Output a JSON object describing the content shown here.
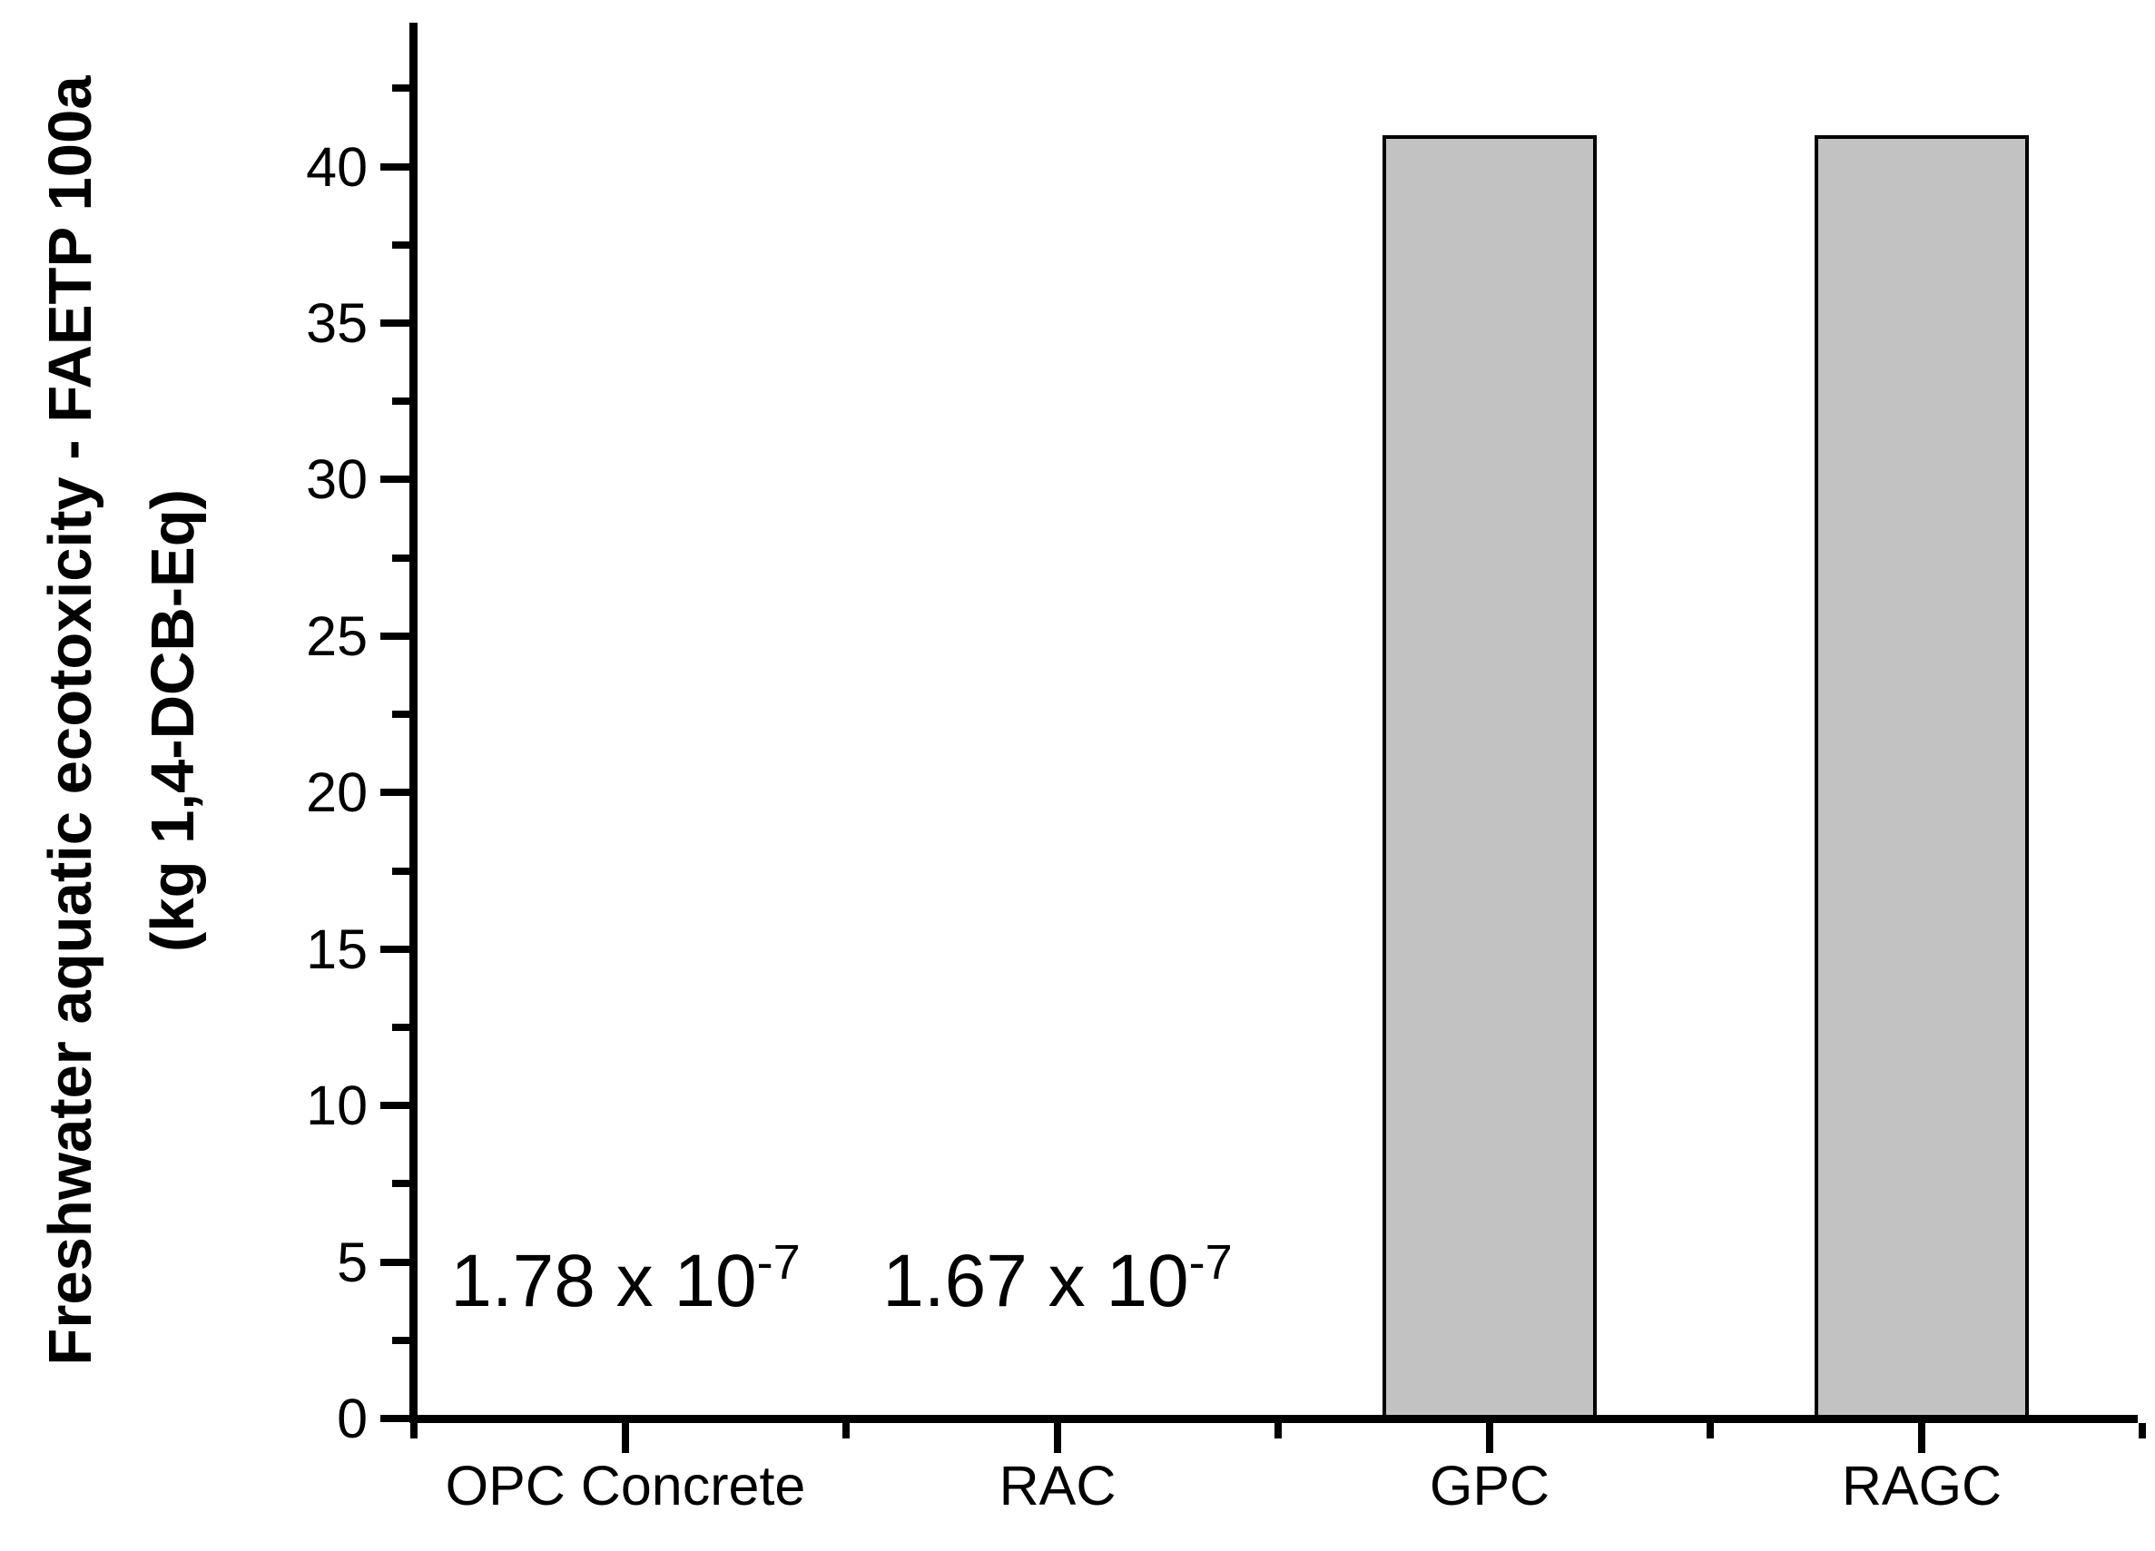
{
  "chart_data": {
    "type": "bar",
    "title": "",
    "xlabel": "",
    "ylabel_line1": "Freshwater aquatic ecotoxicity - FAETP 100a",
    "ylabel_line2": "(kg 1,4-DCB-Eq)",
    "categories": [
      "OPC Concrete",
      "RAC",
      "GPC",
      "RAGC"
    ],
    "values": [
      1.78e-07,
      1.67e-07,
      41,
      41
    ],
    "value_annotations": [
      {
        "category_index": 0,
        "text": "1.78 x 10",
        "sup": "-7"
      },
      {
        "category_index": 1,
        "text": "1.67 x 10",
        "sup": "-7"
      }
    ],
    "ylim": [
      0,
      44.6
    ],
    "yticks_major": [
      0,
      5,
      10,
      15,
      20,
      25,
      30,
      35,
      40
    ],
    "ytick_labels": [
      "0",
      "5",
      "10",
      "15",
      "20",
      "25",
      "30",
      "35",
      "40"
    ],
    "yticks_minor": [
      2.5,
      7.5,
      12.5,
      17.5,
      22.5,
      27.5,
      32.5,
      37.5,
      42.5
    ],
    "grid": false,
    "legend": null,
    "colors": {
      "bar_fill": "#c2c2c2",
      "bar_border": "#000000",
      "axis": "#000000",
      "text": "#000000",
      "background": "#ffffff"
    }
  }
}
